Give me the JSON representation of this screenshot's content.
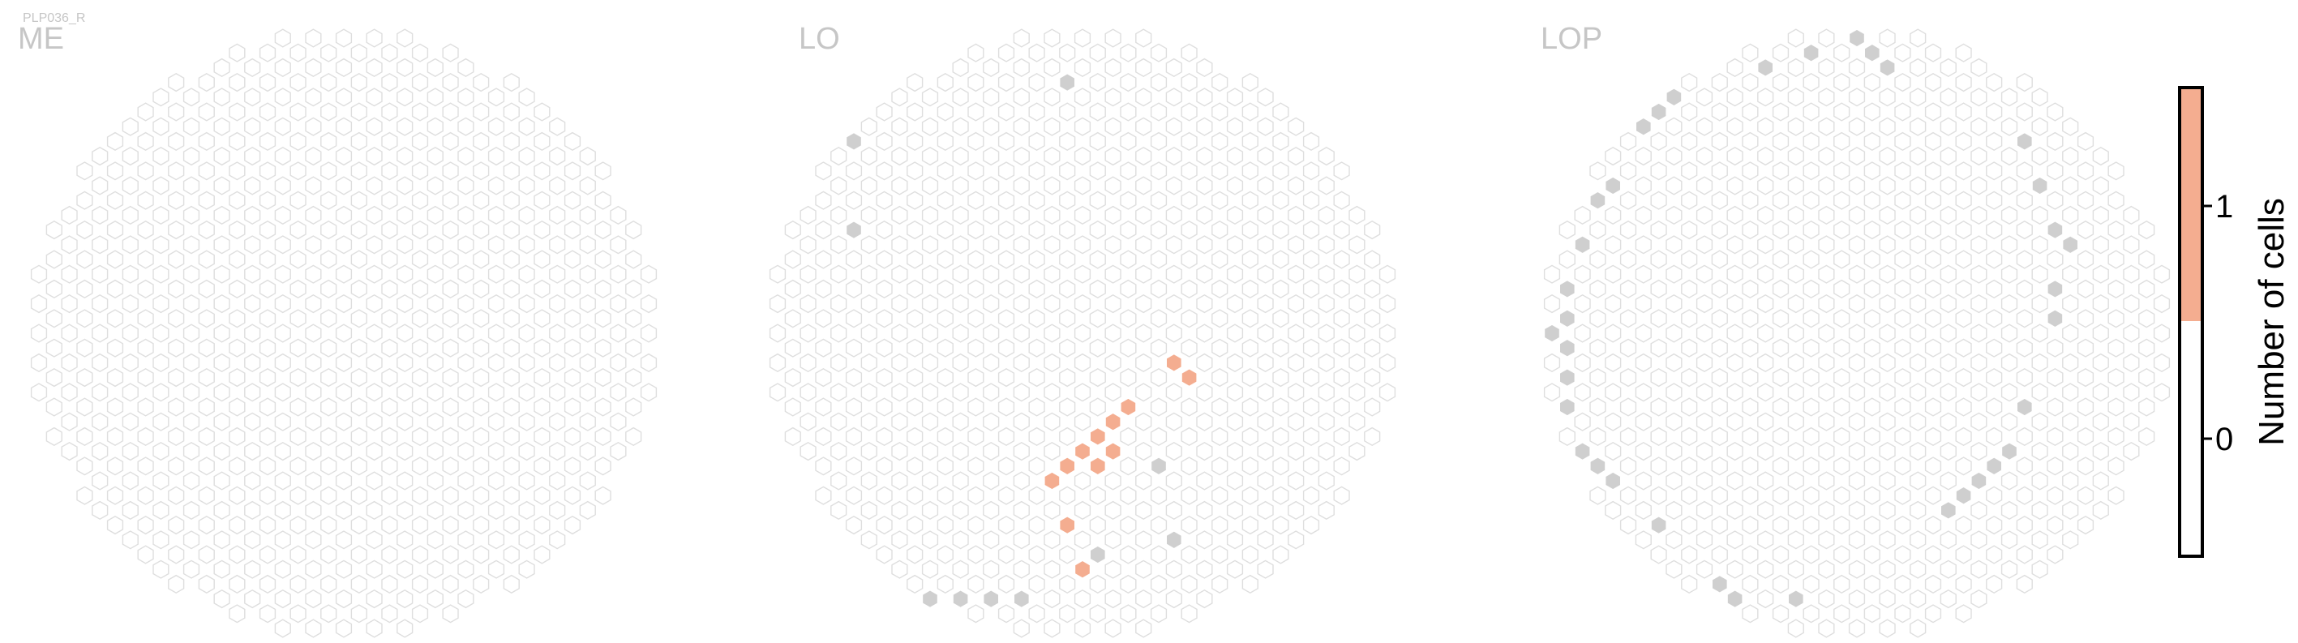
{
  "page": {
    "cell_type": "PLP036_R"
  },
  "chart_data": {
    "type": "heatmap",
    "colorbar": {
      "label": "Number of cells",
      "ticks": [
        "0",
        "1"
      ],
      "bins": [
        {
          "value": 0,
          "color": "#ffffff"
        },
        {
          "value": 1,
          "color": "#f4ad90"
        }
      ],
      "range": [
        -0.5,
        1.5
      ]
    },
    "colors": {
      "empty_hex_stroke": "#dedede",
      "missing_hex_fill": "#cfcfcf",
      "count_1_fill": "#f4ad90",
      "panel_label": "#c6c6c6"
    },
    "panels": [
      {
        "name": "ME",
        "missing_columns": [],
        "counts": []
      },
      {
        "name": "LO",
        "missing_columns": [
          [
            -2,
            19
          ],
          [
            -1,
            17
          ],
          [
            -15,
            13
          ],
          [
            -14,
            13
          ],
          [
            -15,
            7
          ],
          [
            -17,
            0
          ],
          [
            5,
            -9
          ],
          [
            6,
            -11
          ],
          [
            -16,
            -9
          ],
          [
            6,
            -14
          ],
          [
            1,
            -15
          ],
          [
            -2,
            -17
          ],
          [
            -4,
            -18
          ],
          [
            -6,
            -18
          ],
          [
            -8,
            -18
          ],
          [
            -10,
            -18
          ]
        ],
        "counts": [
          {
            "col": [
              9,
              0
            ],
            "value": 1
          },
          {
            "col": [
              8,
              -1
            ],
            "value": 1
          },
          {
            "col": [
              7,
              -2
            ],
            "value": 1
          },
          {
            "col": [
              7,
              -3
            ],
            "value": 1
          },
          {
            "col": [
              6,
              -2
            ],
            "value": 1
          },
          {
            "col": [
              5,
              -4
            ],
            "value": 1
          },
          {
            "col": [
              4,
              -5
            ],
            "value": 1
          },
          {
            "col": [
              3,
              -5
            ],
            "value": 1
          },
          {
            "col": [
              2,
              -6
            ],
            "value": 1
          },
          {
            "col": [
              2,
              -7
            ],
            "value": 1
          },
          {
            "col": [
              1,
              -7
            ],
            "value": 1
          },
          {
            "col": [
              0,
              -8
            ],
            "value": 1
          },
          {
            "col": [
              2,
              -8
            ],
            "value": 1
          },
          {
            "col": [
              1,
              -9
            ],
            "value": 1
          },
          {
            "col": [
              -1,
              -9
            ],
            "value": 1
          },
          {
            "col": [
              0,
              -9
            ],
            "value": 1
          },
          {
            "col": [
              -1,
              -10
            ],
            "value": 1
          },
          {
            "col": [
              -2,
              -10
            ],
            "value": 1
          },
          {
            "col": [
              -3,
              -10
            ],
            "value": 1
          },
          {
            "col": [
              -2,
              -11
            ],
            "value": 1
          },
          {
            "col": [
              -1,
              -12
            ],
            "value": 1
          },
          {
            "col": [
              -1,
              -13
            ],
            "value": 1
          },
          {
            "col": [
              -2,
              -13
            ],
            "value": 1
          },
          {
            "col": [
              -3,
              -12
            ],
            "value": 1
          },
          {
            "col": [
              -1,
              -14
            ],
            "value": 1
          },
          {
            "col": [
              0,
              -15
            ],
            "value": 1
          },
          {
            "col": [
              0,
              -16
            ],
            "value": 1
          },
          {
            "col": [
              -1,
              -16
            ],
            "value": 1
          }
        ]
      },
      {
        "name": "LOP",
        "missing_columns": [
          [
            0,
            20
          ],
          [
            -3,
            19
          ],
          [
            -6,
            18
          ],
          [
            -7,
            18
          ],
          [
            1,
            19
          ],
          [
            2,
            18
          ],
          [
            -11,
            16
          ],
          [
            -12,
            16
          ],
          [
            -12,
            15
          ],
          [
            -13,
            15
          ],
          [
            -13,
            14
          ],
          [
            -14,
            14
          ],
          [
            -14,
            13
          ],
          [
            -15,
            12
          ],
          [
            -16,
            11
          ],
          [
            -16,
            10
          ],
          [
            -17,
            9
          ],
          [
            -17,
            8
          ],
          [
            -18,
            7
          ],
          [
            -18,
            6
          ],
          [
            -18,
            5
          ],
          [
            -19,
            4
          ],
          [
            -19,
            3
          ],
          [
            -19,
            2
          ],
          [
            -19,
            1
          ],
          [
            -20,
            0
          ],
          [
            -19,
            -1
          ],
          [
            -19,
            -2
          ],
          [
            -19,
            -3
          ],
          [
            -19,
            -5
          ],
          [
            -19,
            -6
          ],
          [
            -18,
            -7
          ],
          [
            -18,
            -8
          ],
          [
            -17,
            -9
          ],
          [
            -16,
            -10
          ],
          [
            -16,
            -11
          ],
          [
            -15,
            -12
          ],
          [
            -14,
            -13
          ],
          [
            -13,
            -13
          ],
          [
            -13,
            -14
          ],
          [
            -12,
            -15
          ],
          [
            -11,
            -16
          ],
          [
            -10,
            -17
          ],
          [
            -9,
            -17
          ],
          [
            -8,
            -18
          ],
          [
            -7,
            -18
          ],
          [
            -5,
            -18
          ],
          [
            -4,
            -18
          ],
          [
            -1,
            -18
          ],
          [
            0,
            -17
          ],
          [
            2,
            -17
          ],
          [
            6,
            -12
          ],
          [
            7,
            -11
          ],
          [
            8,
            -10
          ],
          [
            9,
            -9
          ],
          [
            10,
            -8
          ],
          [
            10,
            -7
          ],
          [
            11,
            -6
          ],
          [
            11,
            -5
          ],
          [
            11,
            -4
          ],
          [
            13,
            1
          ],
          [
            13,
            2
          ],
          [
            13,
            3
          ],
          [
            13,
            4
          ],
          [
            14,
            5
          ],
          [
            14,
            6
          ],
          [
            13,
            7
          ],
          [
            13,
            8
          ],
          [
            12,
            9
          ],
          [
            12,
            10
          ],
          [
            12,
            11
          ],
          [
            11,
            12
          ],
          [
            11,
            13
          ],
          [
            11,
            14
          ],
          [
            10,
            15
          ]
        ]
      }
    ]
  }
}
